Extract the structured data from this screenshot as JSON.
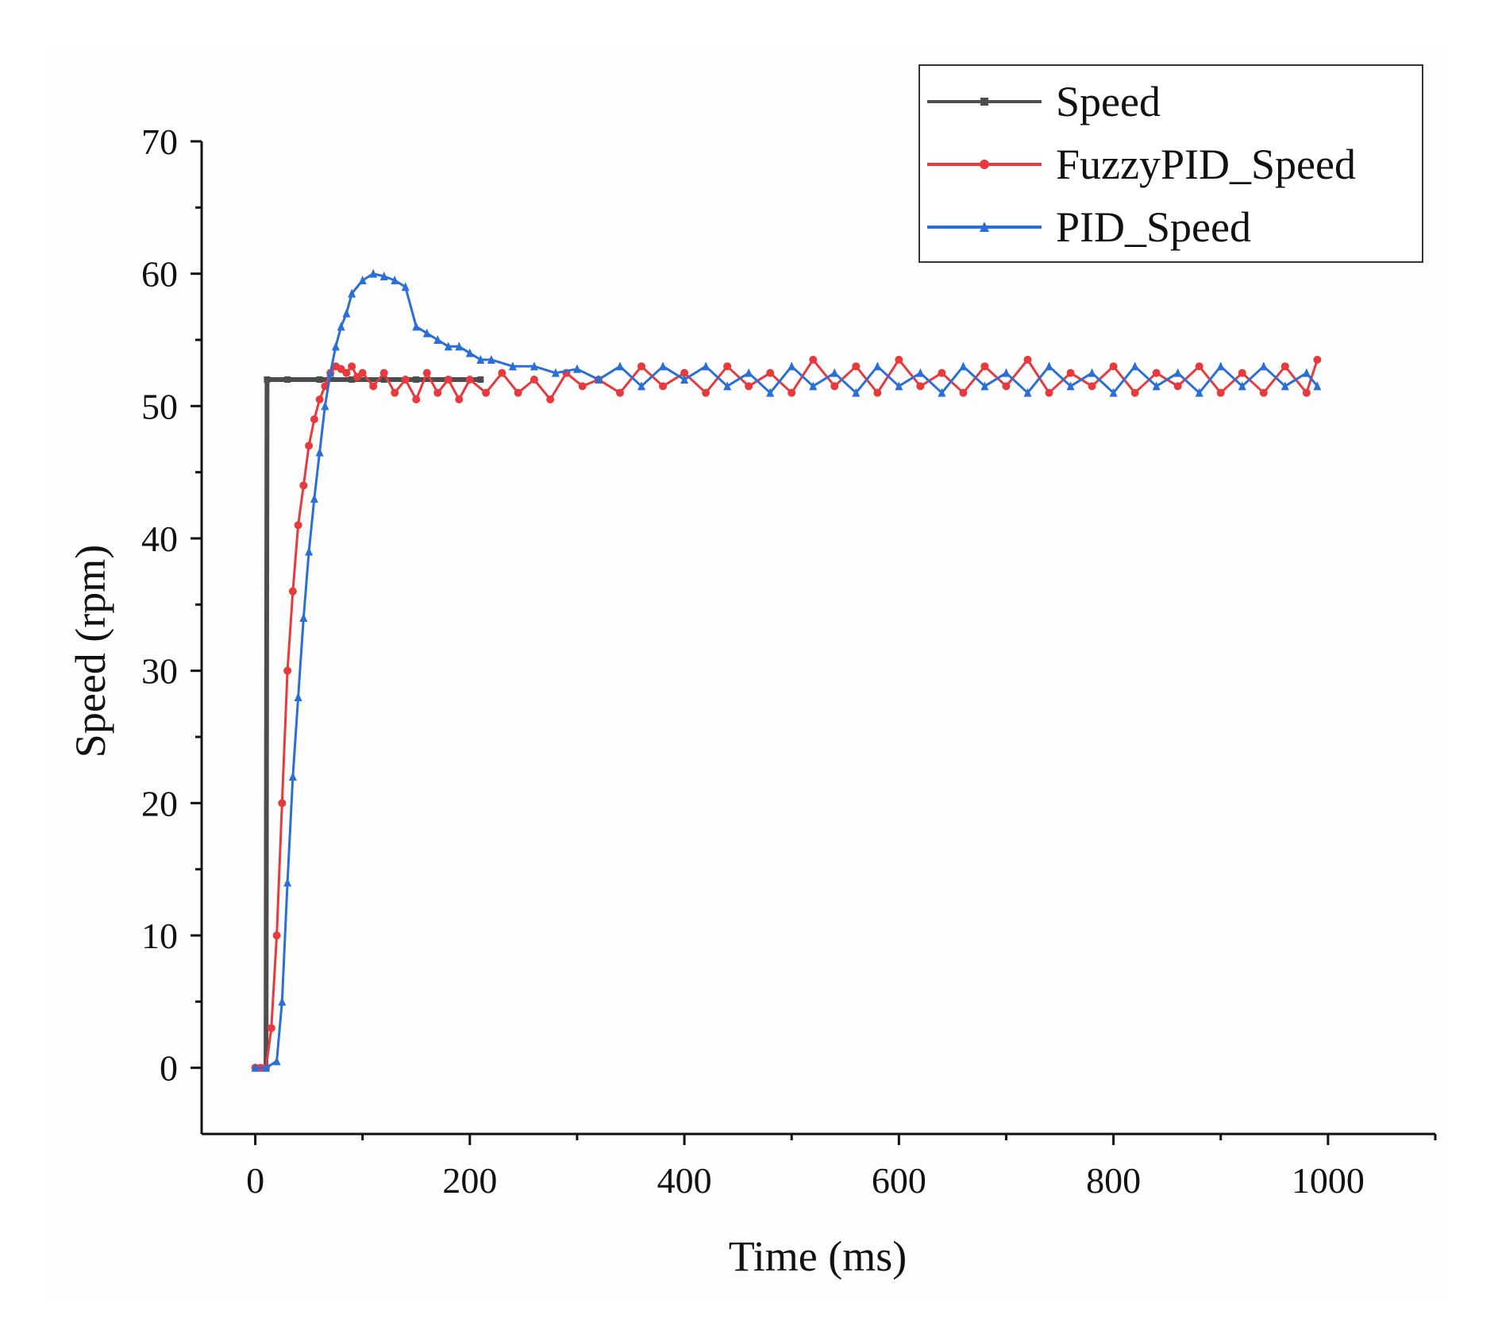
{
  "chart_data": {
    "type": "line",
    "title": "",
    "xlabel": "Time (ms)",
    "ylabel": "Speed (rpm)",
    "xlim": [
      -50,
      1100
    ],
    "ylim": [
      -5,
      70
    ],
    "xticks": [
      0,
      200,
      400,
      600,
      800,
      1000
    ],
    "yticks": [
      0,
      10,
      20,
      30,
      40,
      50,
      60,
      70
    ],
    "x_tick_labels": [
      "0",
      "200",
      "400",
      "600",
      "800",
      "1000"
    ],
    "y_tick_labels": [
      "0",
      "10",
      "20",
      "30",
      "40",
      "50",
      "60",
      "70"
    ],
    "grid": false,
    "legend_position": "top-right",
    "series": [
      {
        "name": "Speed",
        "color": "#4d4d4d",
        "marker": "square",
        "x": [
          0,
          10,
          11,
          30,
          60,
          90,
          120,
          150,
          180,
          210
        ],
        "y": [
          0,
          0,
          52,
          52,
          52,
          52,
          52,
          52,
          52,
          52
        ]
      },
      {
        "name": "FuzzyPID_Speed",
        "color": "#e8393d",
        "marker": "circle",
        "x": [
          0,
          5,
          10,
          15,
          20,
          25,
          30,
          35,
          40,
          45,
          50,
          55,
          60,
          65,
          70,
          75,
          80,
          85,
          90,
          95,
          100,
          110,
          120,
          130,
          140,
          150,
          160,
          170,
          180,
          190,
          200,
          215,
          230,
          245,
          260,
          275,
          290,
          305,
          320,
          340,
          360,
          380,
          400,
          420,
          440,
          460,
          480,
          500,
          520,
          540,
          560,
          580,
          600,
          620,
          640,
          660,
          680,
          700,
          720,
          740,
          760,
          780,
          800,
          820,
          840,
          860,
          880,
          900,
          920,
          940,
          960,
          980,
          990
        ],
        "y": [
          0,
          0,
          0,
          3,
          10,
          20,
          30,
          36,
          41,
          44,
          47,
          49,
          50.5,
          51.5,
          52.5,
          53,
          52.8,
          52.5,
          53,
          52.2,
          52.5,
          51.5,
          52.5,
          51,
          52,
          50.5,
          52.5,
          51,
          52,
          50.5,
          52,
          51,
          52.5,
          51,
          52,
          50.5,
          52.5,
          51.5,
          52,
          51,
          53,
          51.5,
          52.5,
          51,
          53,
          51.5,
          52.5,
          51,
          53.5,
          51.5,
          53,
          51,
          53.5,
          51.5,
          52.5,
          51,
          53,
          51.5,
          53.5,
          51,
          52.5,
          51.5,
          53,
          51,
          52.5,
          51.5,
          53,
          51,
          52.5,
          51,
          53,
          51,
          53.5
        ]
      },
      {
        "name": "PID_Speed",
        "color": "#2a6fd8",
        "marker": "triangle",
        "x": [
          0,
          10,
          20,
          25,
          30,
          35,
          40,
          45,
          50,
          55,
          60,
          65,
          70,
          75,
          80,
          85,
          90,
          100,
          110,
          120,
          130,
          140,
          150,
          160,
          170,
          180,
          190,
          200,
          210,
          220,
          240,
          260,
          280,
          300,
          320,
          340,
          360,
          380,
          400,
          420,
          440,
          460,
          480,
          500,
          520,
          540,
          560,
          580,
          600,
          620,
          640,
          660,
          680,
          700,
          720,
          740,
          760,
          780,
          800,
          820,
          840,
          860,
          880,
          900,
          920,
          940,
          960,
          980,
          990
        ],
        "y": [
          0,
          0,
          0.5,
          5,
          14,
          22,
          28,
          34,
          39,
          43,
          46.5,
          50,
          52.5,
          54.5,
          56,
          57,
          58.5,
          59.5,
          60,
          59.8,
          59.5,
          59,
          56,
          55.5,
          55,
          54.5,
          54.5,
          54,
          53.5,
          53.5,
          53,
          53,
          52.5,
          52.8,
          52,
          53,
          51.5,
          53,
          52,
          53,
          51.5,
          52.5,
          51,
          53,
          51.5,
          52.5,
          51,
          53,
          51.5,
          52.5,
          51,
          53,
          51.5,
          52.5,
          51,
          53,
          51.5,
          52.5,
          51,
          53,
          51.5,
          52.5,
          51,
          53,
          51.5,
          53,
          51.5,
          52.5,
          51.5
        ]
      }
    ]
  }
}
